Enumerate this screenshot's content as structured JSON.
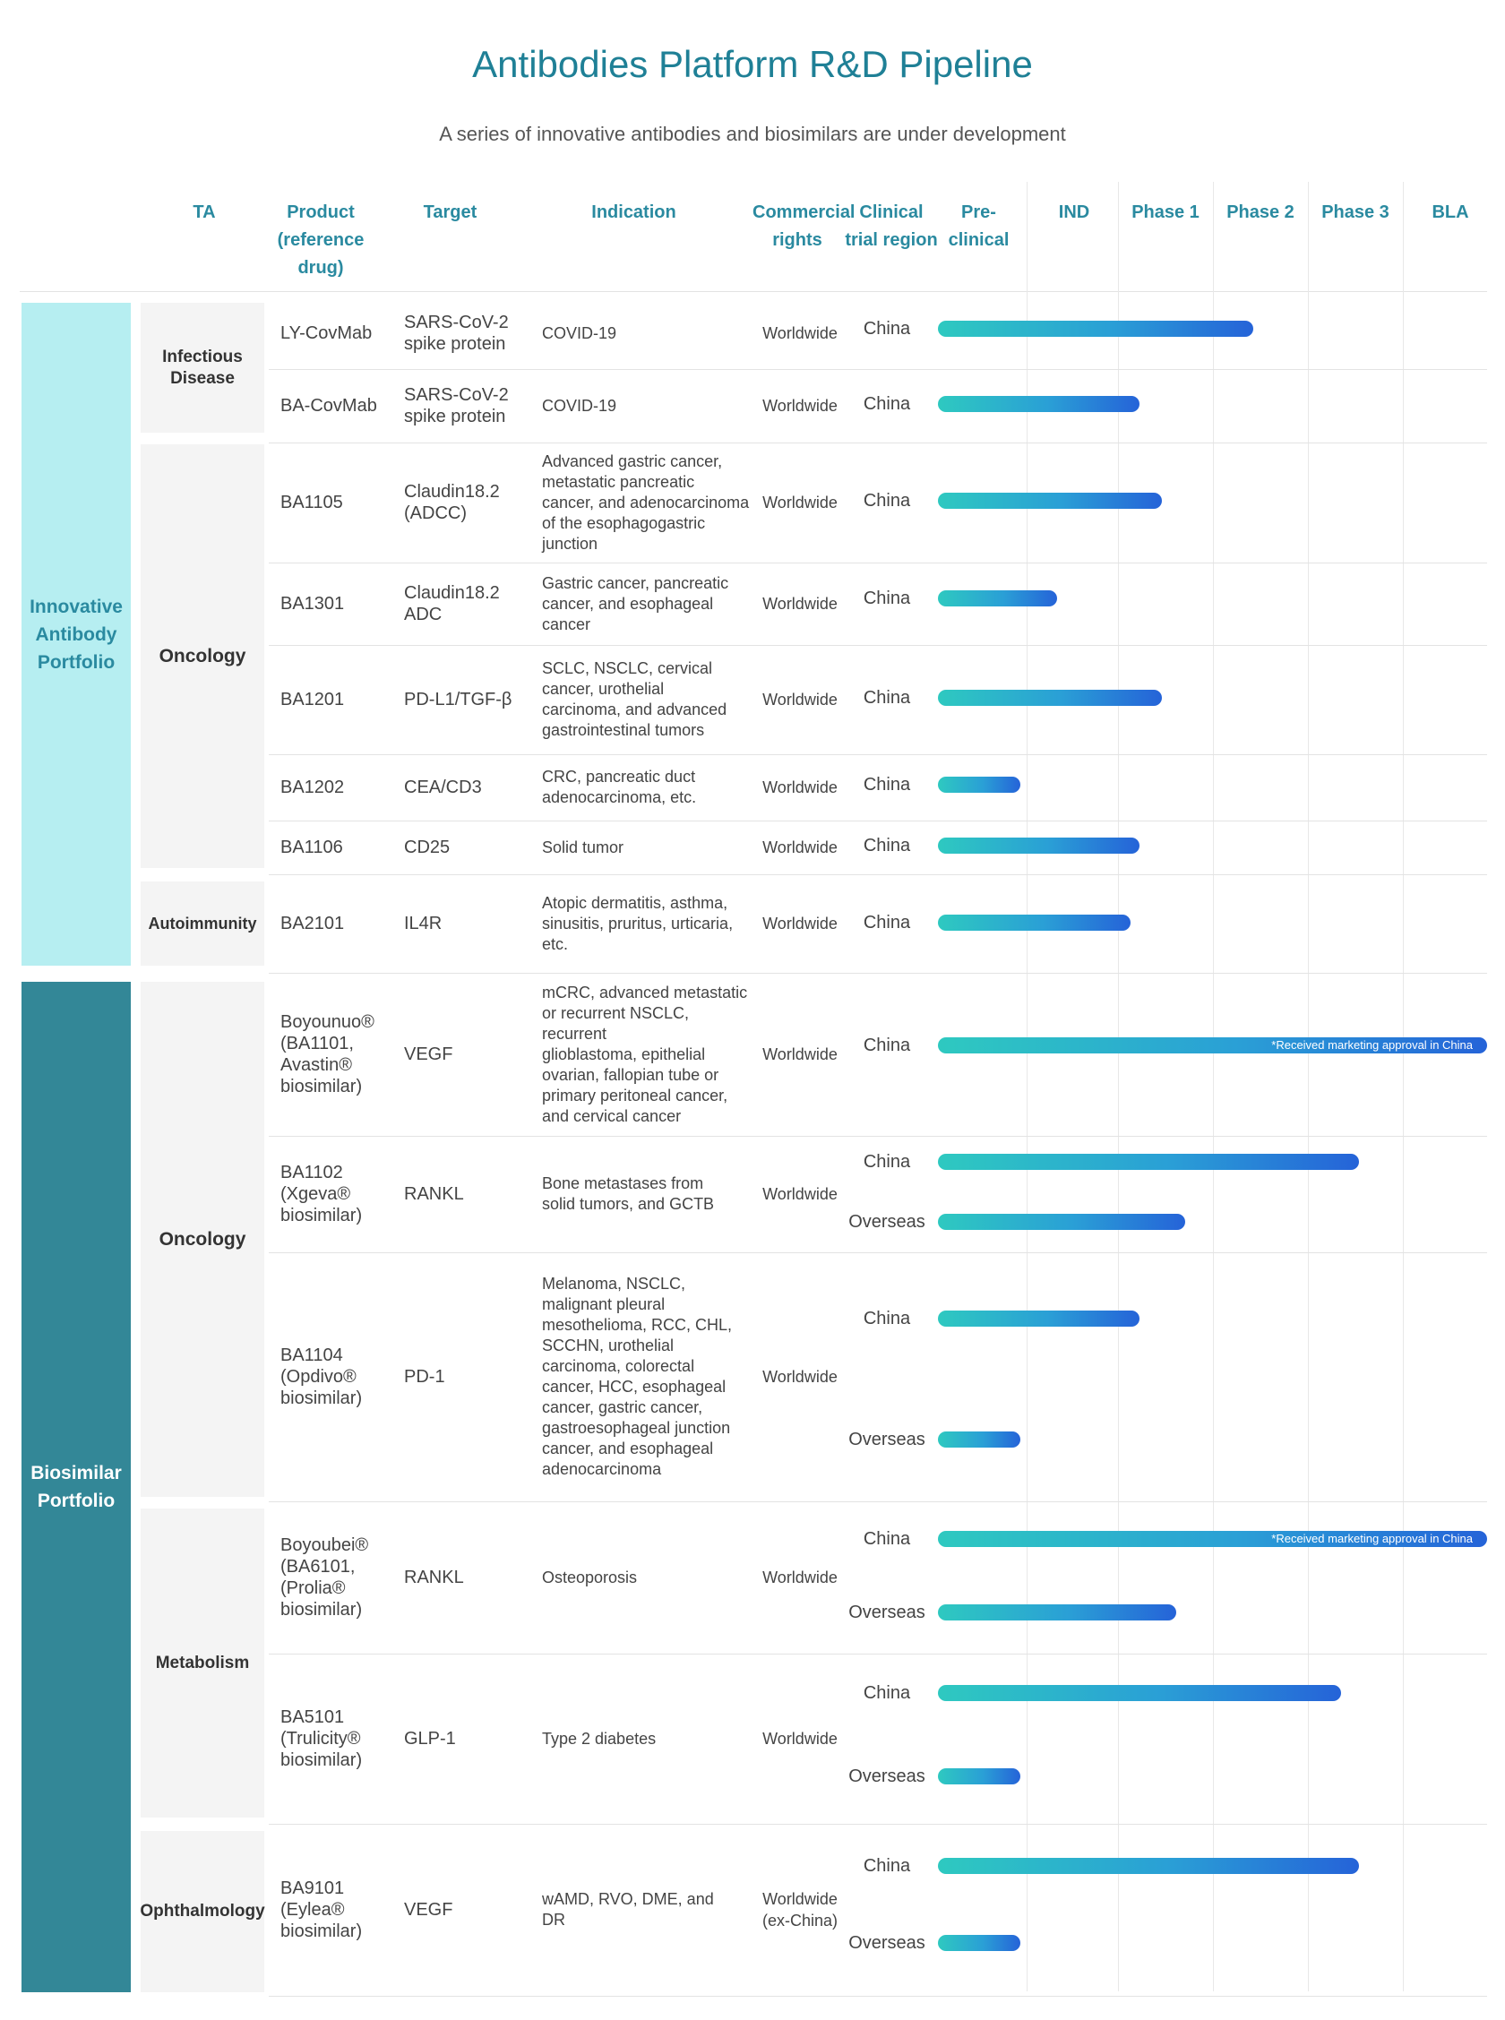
{
  "title": "Antibodies Platform R&D Pipeline",
  "subtitle": "A series of innovative antibodies and biosimilars are under development",
  "headers": {
    "ta": "TA",
    "product": "Product\n(reference\ndrug)",
    "target": "Target",
    "indication": "Indication",
    "rights": "Commercial\nrights",
    "region": "Clinical\ntrial region",
    "preclinical": "Pre-clinical",
    "ind": "IND",
    "phase1": "Phase 1",
    "phase2": "Phase 2",
    "phase3": "Phase 3",
    "bla": "BLA"
  },
  "portfolios": [
    "Innovative\nAntibody\nPortfolio",
    "Biosimilar\nPortfolio"
  ],
  "therapeutic_areas": [
    "Infectious\nDisease",
    "Oncology",
    "Autoimmunity",
    "Oncology",
    "Metabolism",
    "Ophthalmology"
  ],
  "products": [
    {
      "name": "LY-CovMab",
      "target": "SARS-CoV-2\nspike protein",
      "indication": "COVID-19",
      "rights": "Worldwide"
    },
    {
      "name": "BA-CovMab",
      "target": "SARS-CoV-2\nspike protein",
      "indication": "COVID-19",
      "rights": "Worldwide"
    },
    {
      "name": "BA1105",
      "target": "Claudin18.2\n(ADCC)",
      "indication": "Advanced gastric cancer,\nmetastatic pancreatic\ncancer, and adenocarcinoma\nof the esophagogastric\njunction",
      "rights": "Worldwide"
    },
    {
      "name": "BA1301",
      "target": "Claudin18.2\nADC",
      "indication": "Gastric cancer, pancreatic\ncancer, and esophageal\ncancer",
      "rights": "Worldwide"
    },
    {
      "name": "BA1201",
      "target": "PD-L1/TGF-β",
      "indication": "SCLC, NSCLC, cervical\ncancer, urothelial\ncarcinoma, and advanced\ngastrointestinal tumors",
      "rights": "Worldwide"
    },
    {
      "name": "BA1202",
      "target": "CEA/CD3",
      "indication": "CRC, pancreatic duct\nadenocarcinoma, etc.",
      "rights": "Worldwide"
    },
    {
      "name": "BA1106",
      "target": "CD25",
      "indication": "Solid tumor",
      "rights": "Worldwide"
    },
    {
      "name": "BA2101",
      "target": "IL4R",
      "indication": "Atopic dermatitis, asthma,\nsinusitis, pruritus, urticaria,\netc.",
      "rights": "Worldwide"
    },
    {
      "name": "Boyounuo®\n(BA1101,\nAvastin®\nbiosimilar)",
      "target": "VEGF",
      "indication": "mCRC, advanced metastatic\nor recurrent NSCLC, recurrent\n glioblastoma, epithelial\novarian, fallopian tube or\nprimary peritoneal cancer,\nand cervical cancer",
      "rights": "Worldwide"
    },
    {
      "name": "BA1102\n (Xgeva®\nbiosimilar)",
      "target": "RANKL",
      "indication": "Bone metastases from\nsolid tumors, and GCTB",
      "rights": "Worldwide"
    },
    {
      "name": "BA1104\n(Opdivo®\nbiosimilar)",
      "target": "PD-1",
      "indication": "Melanoma, NSCLC,\nmalignant pleural\nmesothelioma, RCC, CHL,\nSCCHN, urothelial\ncarcinoma, colorectal\ncancer, HCC, esophageal\ncancer, gastric cancer,\ngastroesophageal junction\ncancer, and esophageal\nadenocarcinoma",
      "rights": "Worldwide"
    },
    {
      "name": "Boyoubei®\n(BA6101,\n(Prolia®\nbiosimilar)",
      "target": "RANKL",
      "indication": "Osteoporosis",
      "rights": "Worldwide"
    },
    {
      "name": "BA5101\n(Trulicity®\nbiosimilar)",
      "target": "GLP-1",
      "indication": "Type 2 diabetes",
      "rights": "Worldwide"
    },
    {
      "name": "BA9101\n(Eylea®\nbiosimilar)",
      "target": "VEGF",
      "indication": "wAMD, RVO, DME, and\nDR",
      "rights": "Worldwide\n(ex-China)"
    }
  ],
  "approval_note": "*Received marketing approval in China",
  "colors": {
    "title": "#1f8096",
    "header": "#2a8aa0",
    "innovative": "#b6eef1",
    "biosimilar": "#338797",
    "bar_start": "#2ec9c0",
    "bar_end": "#2563d8",
    "ta_bg": "#f4f4f4"
  },
  "chart_data": {
    "type": "bar",
    "orientation": "horizontal",
    "stages": [
      "Pre-clinical",
      "IND",
      "Phase 1",
      "Phase 2",
      "Phase 3",
      "BLA"
    ],
    "value_unit": "stage progress (0 = start of Pre-clinical, 6 = end of BLA)",
    "xlim": [
      0,
      6
    ],
    "grid": true,
    "bars": [
      {
        "product": "LY-CovMab",
        "region": "China",
        "progress": 3.45
      },
      {
        "product": "BA-CovMab",
        "region": "China",
        "progress": 2.2
      },
      {
        "product": "BA1105",
        "region": "China",
        "progress": 2.45
      },
      {
        "product": "BA1301",
        "region": "China",
        "progress": 1.3
      },
      {
        "product": "BA1201",
        "region": "China",
        "progress": 2.45
      },
      {
        "product": "BA1202",
        "region": "China",
        "progress": 0.9
      },
      {
        "product": "BA1106",
        "region": "China",
        "progress": 2.2
      },
      {
        "product": "BA2101",
        "region": "China",
        "progress": 2.1
      },
      {
        "product": "Boyounuo®",
        "region": "China",
        "progress": 6.0,
        "note": "*Received marketing approval in China"
      },
      {
        "product": "BA1102",
        "region": "China",
        "progress": 4.6
      },
      {
        "product": "BA1102",
        "region": "Overseas",
        "progress": 2.7
      },
      {
        "product": "BA1104",
        "region": "China",
        "progress": 2.2
      },
      {
        "product": "BA1104",
        "region": "Overseas",
        "progress": 0.9
      },
      {
        "product": "Boyoubei®",
        "region": "China",
        "progress": 6.0,
        "note": "*Received marketing approval in China"
      },
      {
        "product": "Boyoubei®",
        "region": "Overseas",
        "progress": 2.6
      },
      {
        "product": "BA5101",
        "region": "China",
        "progress": 4.4
      },
      {
        "product": "BA5101",
        "region": "Overseas",
        "progress": 0.9
      },
      {
        "product": "BA9101",
        "region": "China",
        "progress": 4.6
      },
      {
        "product": "BA9101",
        "region": "Overseas",
        "progress": 0.9
      }
    ]
  }
}
